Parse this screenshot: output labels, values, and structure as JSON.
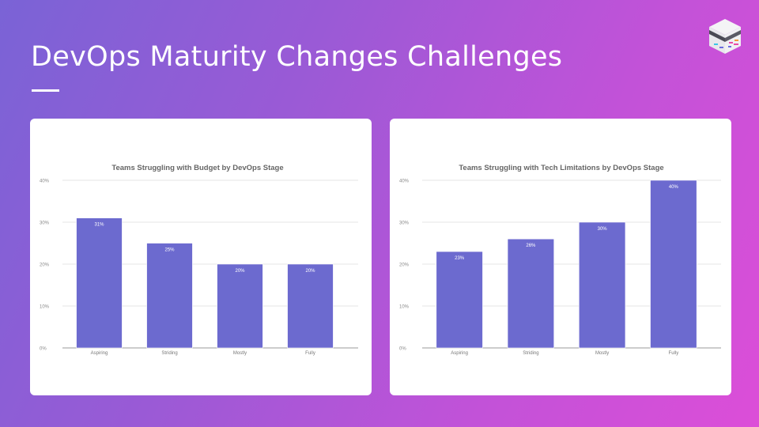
{
  "slide": {
    "title": "DevOps Maturity Changes Challenges"
  },
  "colors": {
    "bar": "#6c6acf",
    "grid": "#e6e6e6",
    "axis": "#999999",
    "text": "#666666"
  },
  "chart_data": [
    {
      "type": "bar",
      "title": "Teams Struggling with Budget by DevOps Stage",
      "categories": [
        "Aspiring",
        "Striding",
        "Mostly",
        "Fully"
      ],
      "values": [
        31,
        25,
        20,
        20
      ],
      "data_labels": [
        "31%",
        "25%",
        "20%",
        "20%"
      ],
      "yticks": [
        "0%",
        "10%",
        "20%",
        "30%",
        "40%"
      ],
      "ylim": [
        0,
        40
      ],
      "grid": true,
      "xlabel": "",
      "ylabel": ""
    },
    {
      "type": "bar",
      "title": "Teams Struggling with Tech Limitations by DevOps Stage",
      "categories": [
        "Aspiring",
        "Striding",
        "Mostly",
        "Fully"
      ],
      "values": [
        23,
        26,
        30,
        40
      ],
      "data_labels": [
        "23%",
        "26%",
        "30%",
        "40%"
      ],
      "yticks": [
        "0%",
        "10%",
        "20%",
        "30%",
        "40%"
      ],
      "ylim": [
        0,
        40
      ],
      "grid": true,
      "xlabel": "",
      "ylabel": ""
    }
  ]
}
